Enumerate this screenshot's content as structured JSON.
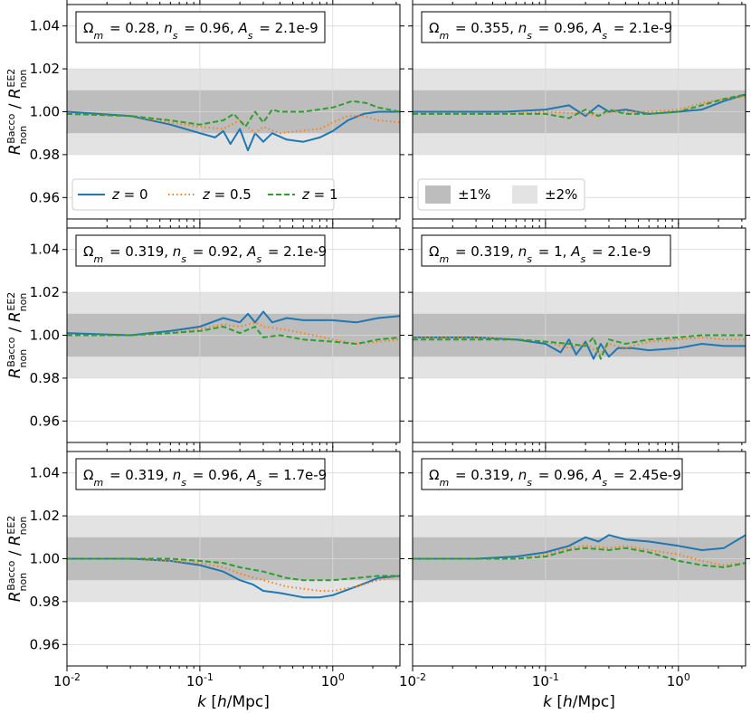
{
  "figure": {
    "ylabel": "R_non^Bacco / R_non^EE2",
    "xlabel": "k [h/Mpc]",
    "x_ticks": [
      "10^-2",
      "10^-1",
      "10^0"
    ],
    "y_ticks": [
      "0.96",
      "0.98",
      "1.00",
      "1.02",
      "1.04"
    ]
  },
  "colors": {
    "z0": "#1f77b4",
    "z05": "#ff7f0e",
    "z1": "#2ca02c",
    "band1": "#bdbdbd",
    "band2": "#e3e3e3"
  },
  "legend_z": [
    {
      "key": "z0",
      "label": "z = 0",
      "style": "solid"
    },
    {
      "key": "z05",
      "label": "z = 0.5",
      "style": "dotted"
    },
    {
      "key": "z1",
      "label": "z = 1",
      "style": "dashed"
    }
  ],
  "legend_bands": [
    {
      "key": "band1",
      "label": "±1%"
    },
    {
      "key": "band2",
      "label": "±2%"
    }
  ],
  "chart_data": [
    {
      "type": "line",
      "panel": 1,
      "xscale": "log",
      "xlim": [
        0.01,
        3.2
      ],
      "ylim": [
        0.95,
        1.05
      ],
      "grid": true,
      "title": {
        "Om": "0.28",
        "ns": "0.96",
        "As": "2.1e-9"
      },
      "bands": [
        {
          "name": "±2%",
          "range": [
            0.98,
            1.02
          ]
        },
        {
          "name": "±1%",
          "range": [
            0.99,
            1.01
          ]
        }
      ],
      "series": [
        {
          "name": "z = 0",
          "x": [
            0.01,
            0.03,
            0.06,
            0.1,
            0.13,
            0.15,
            0.17,
            0.2,
            0.23,
            0.26,
            0.3,
            0.35,
            0.45,
            0.6,
            0.8,
            1.0,
            1.3,
            1.7,
            2.2,
            3.2
          ],
          "y": [
            1.0,
            0.998,
            0.994,
            0.99,
            0.988,
            0.991,
            0.985,
            0.992,
            0.982,
            0.99,
            0.986,
            0.99,
            0.987,
            0.986,
            0.988,
            0.991,
            0.996,
            0.999,
            1.0,
            1.0
          ]
        },
        {
          "name": "z = 0.5",
          "x": [
            0.01,
            0.03,
            0.06,
            0.1,
            0.15,
            0.2,
            0.26,
            0.3,
            0.4,
            0.55,
            0.8,
            1.0,
            1.3,
            1.7,
            2.2,
            3.2
          ],
          "y": [
            0.999,
            0.998,
            0.995,
            0.993,
            0.992,
            0.996,
            0.99,
            0.993,
            0.99,
            0.991,
            0.992,
            0.995,
            0.998,
            0.998,
            0.996,
            0.995
          ]
        },
        {
          "name": "z = 1",
          "x": [
            0.01,
            0.03,
            0.06,
            0.1,
            0.15,
            0.18,
            0.22,
            0.26,
            0.3,
            0.35,
            0.4,
            0.6,
            1.0,
            1.4,
            1.8,
            2.2,
            3.2
          ],
          "y": [
            0.999,
            0.998,
            0.996,
            0.994,
            0.996,
            0.999,
            0.993,
            1.0,
            0.995,
            1.001,
            1.0,
            1.0,
            1.002,
            1.005,
            1.004,
            1.002,
            1.0
          ]
        }
      ]
    },
    {
      "type": "line",
      "panel": 2,
      "xscale": "log",
      "xlim": [
        0.01,
        3.2
      ],
      "ylim": [
        0.95,
        1.05
      ],
      "grid": true,
      "title": {
        "Om": "0.355",
        "ns": "0.96",
        "As": "2.1e-9"
      },
      "bands": [
        {
          "name": "±2%",
          "range": [
            0.98,
            1.02
          ]
        },
        {
          "name": "±1%",
          "range": [
            0.99,
            1.01
          ]
        }
      ],
      "series": [
        {
          "name": "z = 0",
          "x": [
            0.01,
            0.05,
            0.1,
            0.15,
            0.2,
            0.25,
            0.3,
            0.4,
            0.6,
            1.0,
            1.5,
            2.2,
            3.2
          ],
          "y": [
            1.0,
            1.0,
            1.001,
            1.003,
            0.998,
            1.003,
            1.0,
            1.001,
            0.999,
            1.0,
            1.001,
            1.005,
            1.008
          ]
        },
        {
          "name": "z = 0.5",
          "x": [
            0.01,
            0.05,
            0.1,
            0.2,
            0.25,
            0.3,
            0.4,
            0.6,
            1.0,
            1.5,
            2.2,
            3.2
          ],
          "y": [
            0.999,
            0.999,
            1.0,
            0.999,
            0.998,
            1.0,
            1.0,
            1.0,
            1.001,
            1.004,
            1.006,
            1.007
          ]
        },
        {
          "name": "z = 1",
          "x": [
            0.01,
            0.05,
            0.1,
            0.15,
            0.2,
            0.25,
            0.3,
            0.4,
            0.6,
            1.0,
            1.5,
            2.2,
            3.2
          ],
          "y": [
            0.999,
            0.999,
            0.999,
            0.997,
            1.001,
            0.998,
            1.001,
            0.999,
            0.999,
            1.0,
            1.003,
            1.006,
            1.008
          ]
        }
      ]
    },
    {
      "type": "line",
      "panel": 3,
      "xscale": "log",
      "xlim": [
        0.01,
        3.2
      ],
      "ylim": [
        0.95,
        1.05
      ],
      "grid": true,
      "title": {
        "Om": "0.319",
        "ns": "0.92",
        "As": "2.1e-9"
      },
      "bands": [
        {
          "name": "±2%",
          "range": [
            0.98,
            1.02
          ]
        },
        {
          "name": "±1%",
          "range": [
            0.99,
            1.01
          ]
        }
      ],
      "series": [
        {
          "name": "z = 0",
          "x": [
            0.01,
            0.03,
            0.06,
            0.1,
            0.15,
            0.2,
            0.23,
            0.26,
            0.3,
            0.35,
            0.45,
            0.6,
            1.0,
            1.5,
            2.2,
            3.2
          ],
          "y": [
            1.001,
            1.0,
            1.002,
            1.004,
            1.008,
            1.006,
            1.01,
            1.006,
            1.011,
            1.006,
            1.008,
            1.007,
            1.007,
            1.006,
            1.008,
            1.009
          ]
        },
        {
          "name": "z = 0.5",
          "x": [
            0.01,
            0.03,
            0.06,
            0.1,
            0.15,
            0.2,
            0.26,
            0.3,
            0.4,
            0.6,
            1.0,
            1.5,
            2.2,
            3.2
          ],
          "y": [
            1.0,
            1.0,
            1.001,
            1.003,
            1.005,
            1.004,
            1.006,
            1.004,
            1.003,
            1.001,
            0.998,
            0.996,
            0.997,
            0.998
          ]
        },
        {
          "name": "z = 1",
          "x": [
            0.01,
            0.03,
            0.06,
            0.1,
            0.15,
            0.2,
            0.26,
            0.3,
            0.4,
            0.6,
            1.0,
            1.5,
            2.2,
            3.2
          ],
          "y": [
            1.0,
            1.0,
            1.001,
            1.002,
            1.004,
            1.001,
            1.004,
            0.999,
            1.0,
            0.998,
            0.997,
            0.996,
            0.998,
            0.999
          ]
        }
      ]
    },
    {
      "type": "line",
      "panel": 4,
      "xscale": "log",
      "xlim": [
        0.01,
        3.2
      ],
      "ylim": [
        0.95,
        1.05
      ],
      "grid": true,
      "title": {
        "Om": "0.319",
        "ns": "1",
        "As": "2.1e-9"
      },
      "bands": [
        {
          "name": "±2%",
          "range": [
            0.98,
            1.02
          ]
        },
        {
          "name": "±1%",
          "range": [
            0.99,
            1.01
          ]
        }
      ],
      "series": [
        {
          "name": "z = 0",
          "x": [
            0.01,
            0.03,
            0.06,
            0.1,
            0.13,
            0.15,
            0.17,
            0.2,
            0.23,
            0.26,
            0.3,
            0.35,
            0.45,
            0.6,
            1.0,
            1.5,
            2.2,
            3.2
          ],
          "y": [
            0.999,
            0.999,
            0.998,
            0.996,
            0.992,
            0.998,
            0.991,
            0.997,
            0.989,
            0.996,
            0.99,
            0.994,
            0.994,
            0.993,
            0.994,
            0.996,
            0.995,
            0.995
          ]
        },
        {
          "name": "z = 0.5",
          "x": [
            0.01,
            0.03,
            0.06,
            0.1,
            0.15,
            0.2,
            0.26,
            0.3,
            0.4,
            0.6,
            1.0,
            1.5,
            2.2,
            3.2
          ],
          "y": [
            0.999,
            0.999,
            0.998,
            0.997,
            0.994,
            0.996,
            0.991,
            0.996,
            0.994,
            0.997,
            0.998,
            0.999,
            0.998,
            0.998
          ]
        },
        {
          "name": "z = 1",
          "x": [
            0.01,
            0.03,
            0.06,
            0.1,
            0.15,
            0.2,
            0.23,
            0.26,
            0.3,
            0.4,
            0.6,
            1.0,
            1.5,
            2.2,
            3.2
          ],
          "y": [
            0.998,
            0.998,
            0.998,
            0.997,
            0.996,
            0.995,
            0.999,
            0.989,
            0.998,
            0.996,
            0.998,
            0.999,
            1.0,
            1.0,
            1.0
          ]
        }
      ]
    },
    {
      "type": "line",
      "panel": 5,
      "xscale": "log",
      "xlim": [
        0.01,
        3.2
      ],
      "ylim": [
        0.95,
        1.05
      ],
      "grid": true,
      "title": {
        "Om": "0.319",
        "ns": "0.96",
        "As": "1.7e-9"
      },
      "bands": [
        {
          "name": "±2%",
          "range": [
            0.98,
            1.02
          ]
        },
        {
          "name": "±1%",
          "range": [
            0.99,
            1.01
          ]
        }
      ],
      "series": [
        {
          "name": "z = 0",
          "x": [
            0.01,
            0.03,
            0.06,
            0.1,
            0.15,
            0.2,
            0.25,
            0.3,
            0.4,
            0.6,
            0.8,
            1.0,
            1.5,
            2.2,
            3.2
          ],
          "y": [
            1.0,
            1.0,
            0.999,
            0.997,
            0.994,
            0.99,
            0.988,
            0.985,
            0.984,
            0.982,
            0.982,
            0.983,
            0.987,
            0.991,
            0.992
          ]
        },
        {
          "name": "z = 0.5",
          "x": [
            0.01,
            0.03,
            0.06,
            0.1,
            0.15,
            0.2,
            0.3,
            0.45,
            0.6,
            0.8,
            1.0,
            1.5,
            2.2,
            3.2
          ],
          "y": [
            1.0,
            1.0,
            0.999,
            0.998,
            0.996,
            0.993,
            0.99,
            0.987,
            0.986,
            0.985,
            0.985,
            0.987,
            0.99,
            0.992
          ]
        },
        {
          "name": "z = 1",
          "x": [
            0.01,
            0.03,
            0.06,
            0.1,
            0.15,
            0.2,
            0.3,
            0.45,
            0.6,
            0.8,
            1.0,
            1.5,
            2.2,
            3.2
          ],
          "y": [
            1.0,
            1.0,
            1.0,
            0.999,
            0.998,
            0.996,
            0.994,
            0.991,
            0.99,
            0.99,
            0.99,
            0.991,
            0.992,
            0.992
          ]
        }
      ]
    },
    {
      "type": "line",
      "panel": 6,
      "xscale": "log",
      "xlim": [
        0.01,
        3.2
      ],
      "ylim": [
        0.95,
        1.05
      ],
      "grid": true,
      "title": {
        "Om": "0.319",
        "ns": "0.96",
        "As": "2.45e-9"
      },
      "bands": [
        {
          "name": "±2%",
          "range": [
            0.98,
            1.02
          ]
        },
        {
          "name": "±1%",
          "range": [
            0.99,
            1.01
          ]
        }
      ],
      "series": [
        {
          "name": "z = 0",
          "x": [
            0.01,
            0.03,
            0.06,
            0.1,
            0.15,
            0.2,
            0.25,
            0.3,
            0.4,
            0.6,
            1.0,
            1.5,
            2.2,
            3.2
          ],
          "y": [
            1.0,
            1.0,
            1.001,
            1.003,
            1.006,
            1.01,
            1.008,
            1.011,
            1.009,
            1.008,
            1.006,
            1.004,
            1.005,
            1.011
          ]
        },
        {
          "name": "z = 0.5",
          "x": [
            0.01,
            0.03,
            0.06,
            0.1,
            0.15,
            0.2,
            0.3,
            0.4,
            0.6,
            1.0,
            1.5,
            2.2,
            3.2
          ],
          "y": [
            1.0,
            1.0,
            1.0,
            1.002,
            1.005,
            1.006,
            1.005,
            1.006,
            1.004,
            1.002,
            0.999,
            0.997,
            0.998
          ]
        },
        {
          "name": "z = 1",
          "x": [
            0.01,
            0.03,
            0.06,
            0.1,
            0.15,
            0.2,
            0.3,
            0.4,
            0.6,
            1.0,
            1.5,
            2.2,
            3.2
          ],
          "y": [
            1.0,
            1.0,
            1.0,
            1.001,
            1.004,
            1.005,
            1.004,
            1.005,
            1.003,
            0.999,
            0.997,
            0.996,
            0.998
          ]
        }
      ]
    }
  ]
}
